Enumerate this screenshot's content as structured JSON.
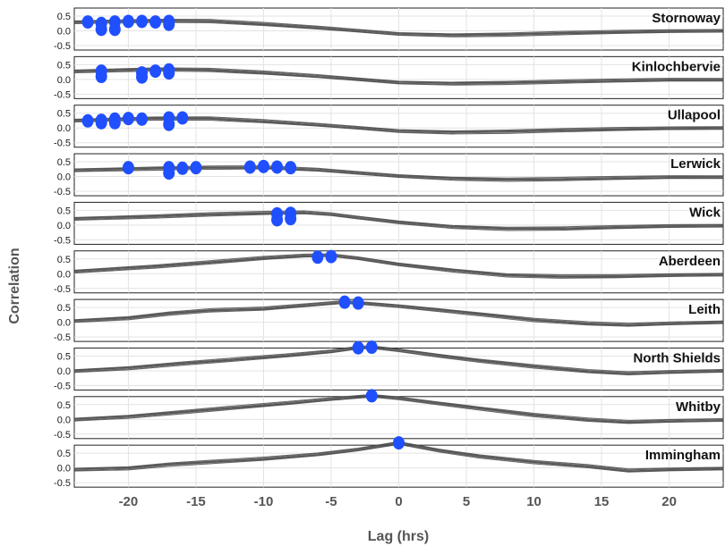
{
  "chart_data": {
    "type": "line",
    "xlabel": "Lag (hrs)",
    "ylabel": "Correlation",
    "xlim": [
      -24,
      24
    ],
    "ylim": [
      -0.5,
      0.5
    ],
    "xticks": [
      -20,
      -15,
      -10,
      -5,
      0,
      5,
      10,
      15,
      20
    ],
    "yticks": [
      0.5,
      0.0,
      -0.5
    ],
    "xtick_labels": [
      "-20",
      "-15",
      "-10",
      "-5",
      "0",
      "5",
      "10",
      "15",
      "20"
    ],
    "ytick_labels": [
      "0.5",
      "0.0",
      "-0.5"
    ],
    "grid": true,
    "colors": {
      "line": "#4a4a4a",
      "marker": "#1f4fff",
      "grid": "#e3e3e3"
    },
    "panels": [
      {
        "title": "Stornoway",
        "curve_x": [
          -24,
          -18,
          -14,
          -10,
          -6,
          -3,
          0,
          4,
          8,
          12,
          16,
          20,
          24
        ],
        "curve_y": [
          0.3,
          0.35,
          0.33,
          0.22,
          0.1,
          0.0,
          -0.1,
          -0.14,
          -0.12,
          -0.08,
          -0.05,
          -0.02,
          0.0
        ],
        "peaks_x": [
          -23,
          -22,
          -21,
          -20,
          -19,
          -18,
          -17,
          -22,
          -21,
          -17
        ],
        "peaks_y": [
          0.3,
          0.25,
          0.3,
          0.32,
          0.32,
          0.3,
          0.32,
          0.05,
          0.05,
          0.22
        ]
      },
      {
        "title": "Kinlochbervie",
        "curve_x": [
          -24,
          -18,
          -14,
          -10,
          -6,
          -3,
          0,
          4,
          8,
          12,
          16,
          20,
          24
        ],
        "curve_y": [
          0.28,
          0.35,
          0.32,
          0.22,
          0.1,
          0.0,
          -0.1,
          -0.13,
          -0.11,
          -0.08,
          -0.05,
          -0.02,
          -0.01
        ],
        "peaks_x": [
          -22,
          -22,
          -19,
          -19,
          -18,
          -17,
          -17
        ],
        "peaks_y": [
          0.28,
          0.1,
          0.22,
          0.08,
          0.28,
          0.32,
          0.22
        ]
      },
      {
        "title": "Ullapool",
        "curve_x": [
          -24,
          -18,
          -14,
          -10,
          -6,
          -3,
          0,
          4,
          8,
          12,
          16,
          20,
          24
        ],
        "curve_y": [
          0.26,
          0.33,
          0.32,
          0.22,
          0.1,
          0.0,
          -0.1,
          -0.14,
          -0.12,
          -0.08,
          -0.05,
          -0.02,
          0.0
        ],
        "peaks_x": [
          -23,
          -22,
          -21,
          -20,
          -19,
          -17,
          -16,
          -22,
          -21,
          -17
        ],
        "peaks_y": [
          0.24,
          0.26,
          0.3,
          0.32,
          0.3,
          0.34,
          0.34,
          0.18,
          0.18,
          0.12
        ]
      },
      {
        "title": "Lerwick",
        "curve_x": [
          -24,
          -18,
          -14,
          -10,
          -6,
          -3,
          0,
          4,
          8,
          12,
          16,
          20,
          24
        ],
        "curve_y": [
          0.22,
          0.28,
          0.3,
          0.3,
          0.22,
          0.12,
          0.02,
          -0.06,
          -0.1,
          -0.09,
          -0.06,
          -0.03,
          -0.02
        ],
        "peaks_x": [
          -20,
          -17,
          -16,
          -15,
          -11,
          -10,
          -9,
          -8,
          -17
        ],
        "peaks_y": [
          0.3,
          0.3,
          0.28,
          0.3,
          0.32,
          0.34,
          0.32,
          0.3,
          0.12
        ]
      },
      {
        "title": "Wick",
        "curve_x": [
          -24,
          -18,
          -14,
          -10,
          -7,
          -5,
          -3,
          0,
          4,
          8,
          12,
          16,
          20,
          24
        ],
        "curve_y": [
          0.22,
          0.3,
          0.36,
          0.4,
          0.42,
          0.36,
          0.25,
          0.1,
          -0.05,
          -0.12,
          -0.12,
          -0.08,
          -0.04,
          -0.02
        ],
        "peaks_x": [
          -9,
          -8,
          -9,
          -8
        ],
        "peaks_y": [
          0.38,
          0.4,
          0.18,
          0.22
        ]
      },
      {
        "title": "Aberdeen",
        "curve_x": [
          -24,
          -18,
          -14,
          -10,
          -7,
          -5,
          -3,
          0,
          4,
          8,
          12,
          16,
          20,
          24
        ],
        "curve_y": [
          0.08,
          0.25,
          0.38,
          0.52,
          0.6,
          0.62,
          0.52,
          0.32,
          0.12,
          -0.05,
          -0.1,
          -0.1,
          -0.06,
          -0.03
        ],
        "peaks_x": [
          -6,
          -5
        ],
        "peaks_y": [
          0.56,
          0.58
        ]
      },
      {
        "title": "Leith",
        "curve_x": [
          -24,
          -20,
          -17,
          -14,
          -10,
          -6,
          -4,
          -2,
          0,
          3,
          6,
          10,
          14,
          17,
          20,
          24
        ],
        "curve_y": [
          0.05,
          0.15,
          0.3,
          0.4,
          0.45,
          0.6,
          0.68,
          0.62,
          0.55,
          0.42,
          0.28,
          0.08,
          -0.05,
          -0.1,
          -0.05,
          0.0
        ],
        "peaks_x": [
          -4,
          -3
        ],
        "peaks_y": [
          0.68,
          0.65
        ]
      },
      {
        "title": "North Shields",
        "curve_x": [
          -24,
          -20,
          -16,
          -12,
          -8,
          -5,
          -3,
          -2,
          0,
          3,
          6,
          10,
          14,
          17,
          20,
          24
        ],
        "curve_y": [
          0.0,
          0.1,
          0.25,
          0.38,
          0.52,
          0.65,
          0.78,
          0.8,
          0.7,
          0.52,
          0.35,
          0.15,
          -0.02,
          -0.1,
          -0.05,
          0.0
        ],
        "peaks_x": [
          -3,
          -2
        ],
        "peaks_y": [
          0.78,
          0.8
        ]
      },
      {
        "title": "Whitby",
        "curve_x": [
          -24,
          -20,
          -16,
          -12,
          -8,
          -5,
          -2,
          0,
          3,
          6,
          10,
          14,
          17,
          20,
          24
        ],
        "curve_y": [
          0.0,
          0.1,
          0.25,
          0.4,
          0.55,
          0.68,
          0.8,
          0.72,
          0.55,
          0.38,
          0.15,
          -0.02,
          -0.1,
          -0.06,
          -0.02
        ],
        "peaks_x": [
          -2
        ],
        "peaks_y": [
          0.8
        ]
      },
      {
        "title": "Immingham",
        "curve_x": [
          -24,
          -20,
          -17,
          -14,
          -10,
          -6,
          -3,
          0,
          3,
          6,
          10,
          14,
          17,
          20,
          24
        ],
        "curve_y": [
          -0.05,
          0.0,
          0.12,
          0.2,
          0.3,
          0.45,
          0.62,
          0.85,
          0.6,
          0.4,
          0.2,
          0.05,
          -0.1,
          -0.06,
          -0.02
        ],
        "peaks_x": [
          0
        ],
        "peaks_y": [
          0.85
        ]
      }
    ]
  }
}
